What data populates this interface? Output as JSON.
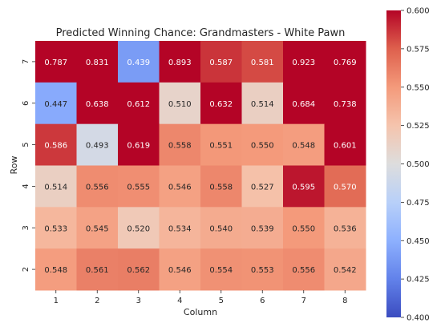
{
  "chart_data": {
    "type": "heatmap",
    "title": "Predicted Winning Chance: Grandmasters - White Pawn",
    "xlabel": "Column",
    "ylabel": "Row",
    "x_categories": [
      "1",
      "2",
      "3",
      "4",
      "5",
      "6",
      "7",
      "8"
    ],
    "y_categories": [
      "7",
      "6",
      "5",
      "4",
      "3",
      "2"
    ],
    "values": [
      [
        0.787,
        0.831,
        0.439,
        0.893,
        0.587,
        0.581,
        0.923,
        0.769
      ],
      [
        0.447,
        0.638,
        0.612,
        0.51,
        0.632,
        0.514,
        0.684,
        0.738
      ],
      [
        0.586,
        0.493,
        0.619,
        0.558,
        0.551,
        0.55,
        0.548,
        0.601
      ],
      [
        0.514,
        0.556,
        0.555,
        0.546,
        0.558,
        0.527,
        0.595,
        0.57
      ],
      [
        0.533,
        0.545,
        0.52,
        0.534,
        0.54,
        0.539,
        0.55,
        0.536
      ],
      [
        0.548,
        0.561,
        0.562,
        0.546,
        0.554,
        0.553,
        0.556,
        0.542
      ]
    ],
    "value_labels": [
      [
        "0.787",
        "0.831",
        "0.439",
        "0.893",
        "0.587",
        "0.581",
        "0.923",
        "0.769"
      ],
      [
        "0.447",
        "0.638",
        "0.612",
        "0.510",
        "0.632",
        "0.514",
        "0.684",
        "0.738"
      ],
      [
        "0.586",
        "0.493",
        "0.619",
        "0.558",
        "0.551",
        "0.550",
        "0.548",
        "0.601"
      ],
      [
        "0.514",
        "0.556",
        "0.555",
        "0.546",
        "0.558",
        "0.527",
        "0.595",
        "0.570"
      ],
      [
        "0.533",
        "0.545",
        "0.520",
        "0.534",
        "0.540",
        "0.539",
        "0.550",
        "0.536"
      ],
      [
        "0.548",
        "0.561",
        "0.562",
        "0.546",
        "0.554",
        "0.553",
        "0.556",
        "0.542"
      ]
    ],
    "colorbar": {
      "colormap": "coolwarm",
      "vmin": 0.4,
      "vmax": 0.6,
      "ticks": [
        "0.400",
        "0.425",
        "0.450",
        "0.475",
        "0.500",
        "0.525",
        "0.550",
        "0.575",
        "0.600"
      ]
    },
    "colors": {
      "low": "#3b4cc0",
      "mid": "#dddddd",
      "high": "#b40426",
      "text_dark": "#262626",
      "text_light": "#ffffff"
    },
    "grid": false,
    "legend": "colorbar-right"
  }
}
